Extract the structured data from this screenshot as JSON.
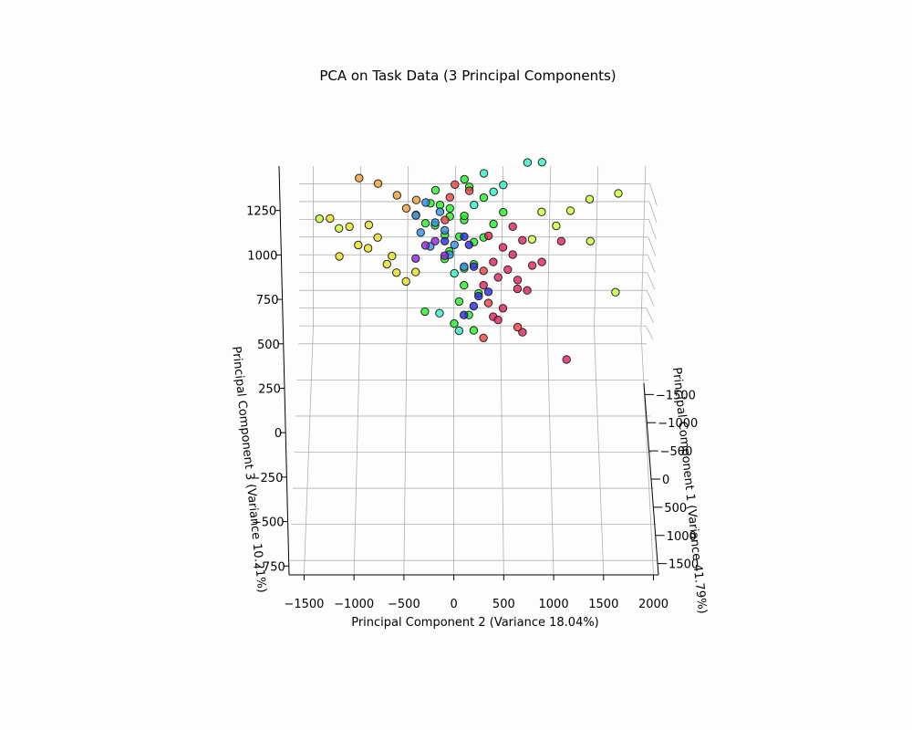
{
  "chart_data": {
    "type": "scatter",
    "projection": "3d",
    "title": "PCA on Task Data (3 Principal Components)",
    "xlabel": "Principal Component 1 (Variance 41.79%)",
    "ylabel": "Principal Component 2 (Variance 18.04%)",
    "zlabel": "Principal Component 3 (Variance 10.21%)",
    "xlim": [
      -1700,
      1700
    ],
    "ylim": [
      -1650,
      2050
    ],
    "zlim": [
      -800,
      1500
    ],
    "x_ticks": [
      "−1500",
      "−1000",
      "−500",
      "0",
      "500",
      "1000",
      "1500"
    ],
    "y_ticks": [
      "−1500",
      "−1000",
      "−500",
      "0",
      "500",
      "1000",
      "1500",
      "2000"
    ],
    "z_ticks": [
      "−750",
      "−500",
      "−250",
      "0",
      "250",
      "500",
      "750",
      "1000",
      "1250"
    ],
    "x_tick_values": [
      -1500,
      -1000,
      -500,
      0,
      500,
      1000,
      1500
    ],
    "y_tick_values": [
      -1500,
      -1000,
      -500,
      0,
      500,
      1000,
      1500,
      2000
    ],
    "z_tick_values": [
      -750,
      -500,
      -250,
      0,
      250,
      500,
      750,
      1000,
      1250
    ],
    "grid": true,
    "legend": "none",
    "groups": [
      {
        "color": "#21f021",
        "points": [
          [
            -200,
            100,
            1350
          ],
          [
            -100,
            150,
            1290
          ],
          [
            0,
            -150,
            1150
          ],
          [
            100,
            -200,
            1000
          ],
          [
            200,
            100,
            1050
          ],
          [
            0,
            50,
            900
          ],
          [
            -100,
            -100,
            900
          ],
          [
            100,
            200,
            700
          ],
          [
            150,
            100,
            550
          ],
          [
            250,
            150,
            350
          ],
          [
            300,
            0,
            300
          ],
          [
            -200,
            -250,
            1150
          ],
          [
            -300,
            -50,
            1100
          ],
          [
            50,
            300,
            900
          ],
          [
            100,
            -50,
            800
          ],
          [
            -400,
            -200,
            1250
          ],
          [
            -50,
            -300,
            1000
          ],
          [
            150,
            -100,
            750
          ],
          [
            200,
            250,
            500
          ],
          [
            0,
            400,
            1000
          ],
          [
            -150,
            300,
            1200
          ],
          [
            100,
            500,
            1100
          ],
          [
            350,
            -300,
            400
          ],
          [
            -250,
            -400,
            1050
          ],
          [
            -50,
            200,
            850
          ],
          [
            250,
            50,
            450
          ],
          [
            0,
            100,
            650
          ],
          [
            -100,
            -50,
            1050
          ],
          [
            -150,
            100,
            1050
          ],
          [
            300,
            200,
            250
          ]
        ]
      },
      {
        "color": "#e0205a",
        "points": [
          [
            0,
            400,
            700
          ],
          [
            -100,
            500,
            800
          ],
          [
            100,
            450,
            600
          ],
          [
            50,
            550,
            650
          ],
          [
            -50,
            600,
            750
          ],
          [
            150,
            300,
            550
          ],
          [
            200,
            650,
            600
          ],
          [
            -150,
            700,
            850
          ],
          [
            0,
            900,
            700
          ],
          [
            100,
            750,
            500
          ],
          [
            250,
            500,
            400
          ],
          [
            -100,
            1100,
            850
          ],
          [
            350,
            700,
            250
          ],
          [
            500,
            1150,
            100
          ],
          [
            300,
            400,
            350
          ],
          [
            -250,
            600,
            950
          ],
          [
            -50,
            350,
            900
          ],
          [
            150,
            800,
            700
          ],
          [
            50,
            650,
            500
          ],
          [
            200,
            450,
            300
          ]
        ]
      },
      {
        "color": "#e8e020",
        "points": [
          [
            -800,
            -1300,
            950
          ],
          [
            -900,
            -1100,
            850
          ],
          [
            -600,
            -900,
            700
          ],
          [
            -500,
            -1000,
            750
          ],
          [
            -400,
            -700,
            600
          ],
          [
            -700,
            -1200,
            600
          ],
          [
            -300,
            -600,
            550
          ],
          [
            -200,
            -500,
            500
          ],
          [
            -600,
            -800,
            800
          ],
          [
            -100,
            -400,
            600
          ],
          [
            -1000,
            -900,
            850
          ],
          [
            -500,
            -650,
            650
          ]
        ]
      },
      {
        "color": "#f0a030",
        "points": [
          [
            -900,
            -1000,
            1350
          ],
          [
            -700,
            -800,
            1300
          ],
          [
            -500,
            -600,
            1200
          ],
          [
            -600,
            -400,
            1150
          ],
          [
            -300,
            -500,
            1100
          ],
          [
            -200,
            -400,
            1050
          ]
        ]
      },
      {
        "color": "#3090e8",
        "points": [
          [
            -300,
            -300,
            1150
          ],
          [
            -200,
            -400,
            1050
          ],
          [
            -100,
            -200,
            1000
          ],
          [
            0,
            -100,
            950
          ],
          [
            -250,
            -350,
            900
          ],
          [
            100,
            0,
            850
          ],
          [
            200,
            100,
            700
          ],
          [
            50,
            -150,
            1100
          ],
          [
            -150,
            -250,
            800
          ],
          [
            -50,
            -50,
            750
          ]
        ]
      },
      {
        "color": "#2828e0",
        "points": [
          [
            0,
            100,
            900
          ],
          [
            100,
            150,
            850
          ],
          [
            200,
            200,
            700
          ],
          [
            300,
            250,
            500
          ],
          [
            -100,
            -100,
            850
          ],
          [
            400,
            200,
            450
          ],
          [
            250,
            100,
            350
          ],
          [
            150,
            350,
            500
          ]
        ]
      },
      {
        "color": "#9020e0",
        "points": [
          [
            -100,
            -200,
            850
          ],
          [
            -200,
            -300,
            800
          ],
          [
            0,
            -100,
            750
          ],
          [
            -150,
            -400,
            700
          ]
        ]
      },
      {
        "color": "#ccff33",
        "points": [
          [
            -800,
            1700,
            1200
          ],
          [
            -700,
            1400,
            1150
          ],
          [
            -600,
            1200,
            1050
          ],
          [
            400,
            1650,
            550
          ],
          [
            -100,
            1400,
            850
          ],
          [
            -500,
            900,
            1050
          ],
          [
            -300,
            1050,
            950
          ],
          [
            -200,
            800,
            850
          ],
          [
            -400,
            -1400,
            1000
          ],
          [
            -500,
            -1200,
            900
          ]
        ]
      },
      {
        "color": "#30f0c0",
        "points": [
          [
            -500,
            900,
            1500
          ],
          [
            -600,
            750,
            1500
          ],
          [
            -300,
            500,
            1300
          ],
          [
            -200,
            300,
            1400
          ],
          [
            -100,
            400,
            1250
          ],
          [
            0,
            200,
            1150
          ],
          [
            200,
            0,
            650
          ],
          [
            400,
            -150,
            400
          ],
          [
            500,
            50,
            300
          ]
        ]
      },
      {
        "color": "#f04040",
        "points": [
          [
            -400,
            0,
            1300
          ],
          [
            -300,
            150,
            1250
          ],
          [
            -200,
            -50,
            1200
          ],
          [
            100,
            300,
            650
          ],
          [
            300,
            350,
            450
          ],
          [
            400,
            650,
            300
          ],
          [
            500,
            300,
            250
          ],
          [
            -300,
            -100,
            1000
          ]
        ]
      }
    ]
  }
}
